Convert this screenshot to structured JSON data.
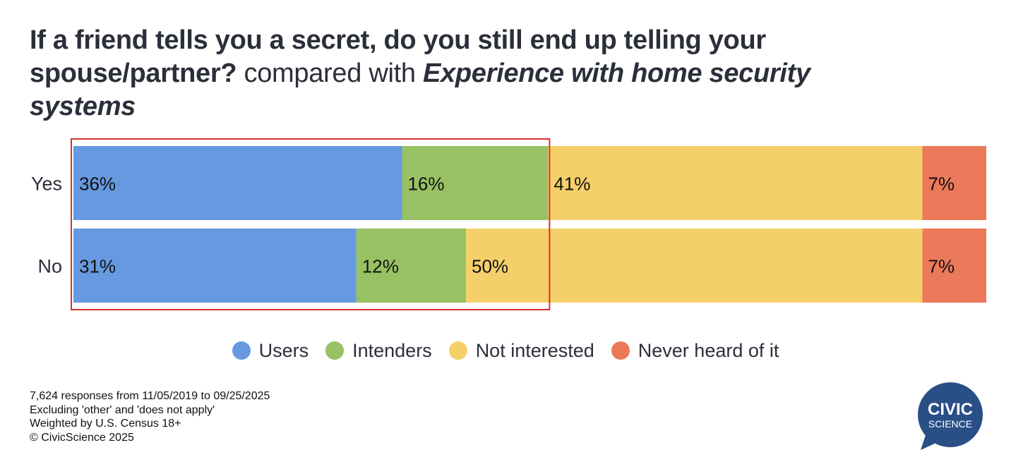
{
  "title": {
    "question": "If a friend tells you a secret, do you still end up telling your spouse/partner?",
    "connector": "compared with",
    "topic": "Experience with home security systems"
  },
  "chart_data": {
    "type": "bar",
    "orientation": "horizontal-stacked-100",
    "categories": [
      "Yes",
      "No"
    ],
    "series": [
      {
        "name": "Users",
        "color": "#6699e0",
        "values": [
          36,
          31
        ],
        "labels": [
          "36%",
          "31%"
        ]
      },
      {
        "name": "Intenders",
        "color": "#97c163",
        "values": [
          16,
          12
        ],
        "labels": [
          "16%",
          "12%"
        ]
      },
      {
        "name": "Not interested",
        "color": "#f5d06a",
        "values": [
          41,
          50
        ],
        "labels": [
          "41%",
          "50%"
        ]
      },
      {
        "name": "Never heard of it",
        "color": "#ec795a",
        "values": [
          7,
          7
        ],
        "labels": [
          "7%",
          "7%"
        ]
      }
    ],
    "xlim": [
      0,
      100
    ],
    "legend_position": "bottom-center",
    "highlight": {
      "color": "#d9302c",
      "series": [
        "Users",
        "Intenders"
      ]
    }
  },
  "footer": {
    "lines": [
      "7,624 responses from 11/05/2019 to 09/25/2025",
      "Excluding 'other' and 'does not apply'",
      "Weighted by U.S. Census 18+",
      "© CivicScience 2025"
    ]
  },
  "logo": {
    "line1": "CIVIC",
    "line2": "SCIENCE",
    "color": "#2a4e86"
  }
}
